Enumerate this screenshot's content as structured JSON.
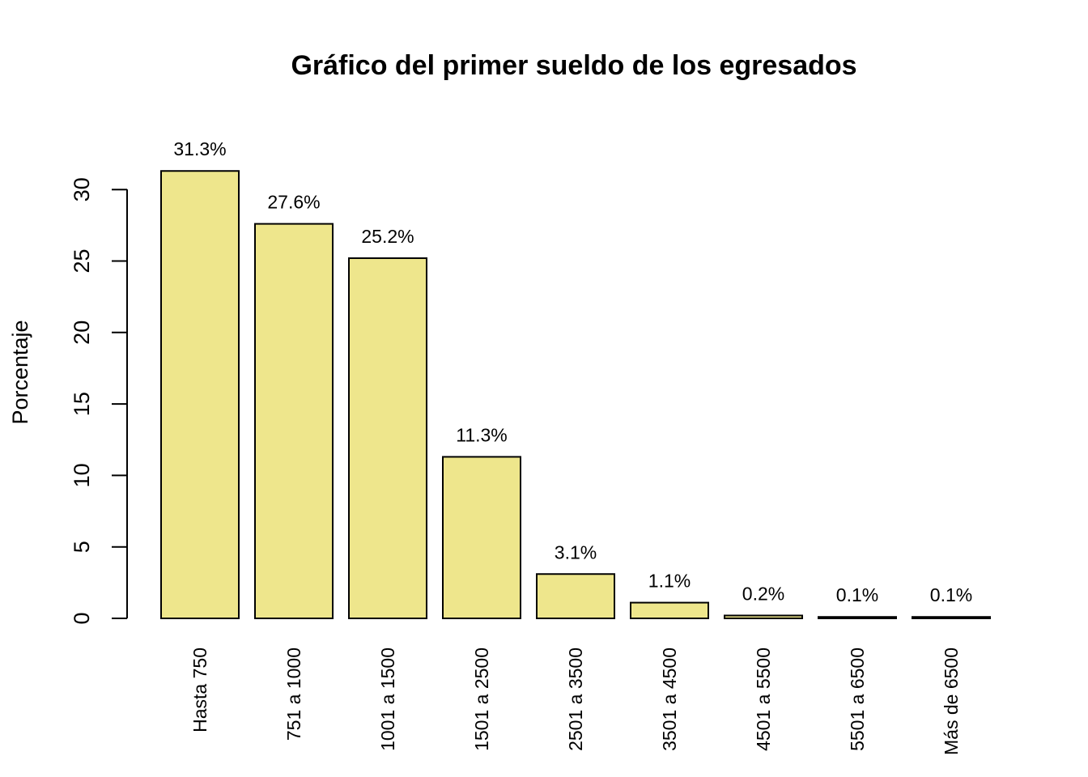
{
  "chart_data": {
    "type": "bar",
    "title": "Gráfico del primer sueldo de los egresados",
    "xlabel": "",
    "ylabel": "Porcentaje",
    "ylim": [
      0,
      31.3
    ],
    "yticks": [
      0,
      5,
      10,
      15,
      20,
      25,
      30
    ],
    "grid": false,
    "bar_color": "#EEE68C",
    "categories": [
      "Hasta 750",
      "751 a 1000",
      "1001 a 1500",
      "1501 a 2500",
      "2501 a 3500",
      "3501 a 4500",
      "4501 a 5500",
      "5501 a 6500",
      "Más de 6500"
    ],
    "values": [
      31.3,
      27.6,
      25.2,
      11.3,
      3.1,
      1.1,
      0.2,
      0.1,
      0.1
    ],
    "data_labels": [
      "31.3%",
      "27.6%",
      "25.2%",
      "11.3%",
      "3.1%",
      "1.1%",
      "0.2%",
      "0.1%",
      "0.1%"
    ]
  }
}
